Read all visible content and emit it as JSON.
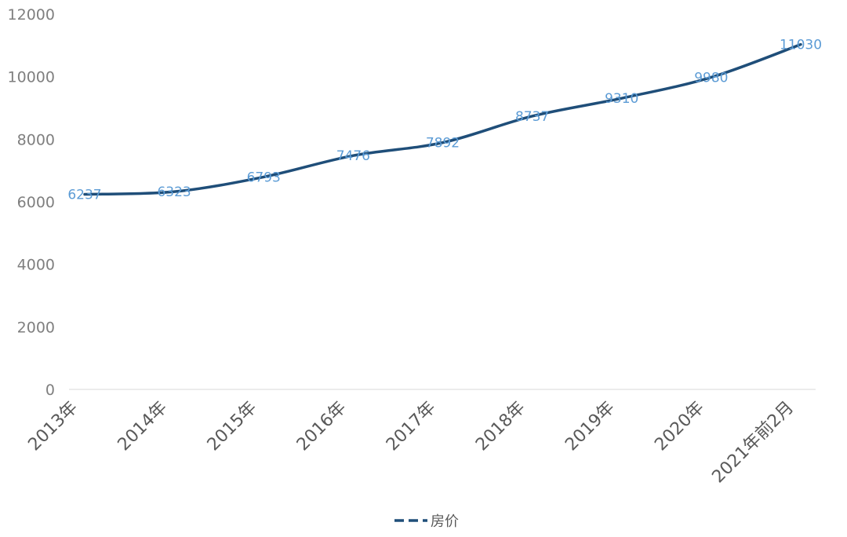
{
  "chart_data": {
    "type": "line",
    "categories": [
      "2013年",
      "2014年",
      "2015年",
      "2016年",
      "2017年",
      "2018年",
      "2019年",
      "2020年",
      "2021年前2月"
    ],
    "series": [
      {
        "name": "房价",
        "values": [
          6237,
          6323,
          6793,
          7476,
          7892,
          8737,
          9310,
          9980,
          11030
        ]
      }
    ],
    "ylim": [
      0,
      12000
    ],
    "yticks": [
      "0",
      "2000",
      "4000",
      "6000",
      "8000",
      "10000",
      "12000"
    ],
    "data_labels": [
      "6237",
      "6323",
      "6793",
      "7476",
      "7892",
      "8737",
      "9310",
      "9980",
      "11030"
    ],
    "grid": false,
    "legend": {
      "position": "bottom",
      "label": "房价"
    },
    "colors": {
      "line": "#1f4e79",
      "label": "#5b9bd5",
      "axis": "#d9d9d9"
    }
  }
}
